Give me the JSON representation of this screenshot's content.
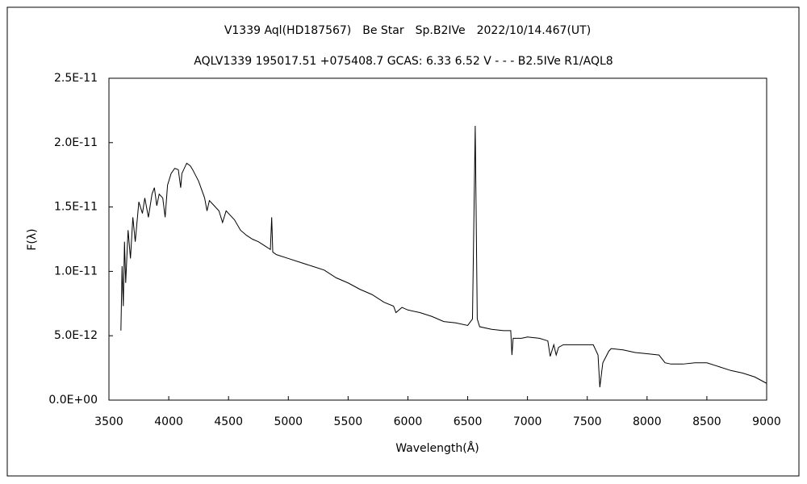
{
  "chart_data": {
    "type": "line",
    "title": "V1339 Aql(HD187567)　Be Star　Sp.B2IVe　2022/10/14.467(UT)",
    "subtitle": "AQLV1339 195017.51 +075408.7 GCAS: 6.33 6.52 V - - - B2.5IVe R1/AQL8",
    "x_label": "Wavelength(Å)",
    "y_label": "F(λ)",
    "xlim": [
      3500,
      9000
    ],
    "xticks": [
      3500,
      4000,
      4500,
      5000,
      5500,
      6000,
      6500,
      7000,
      7500,
      8000,
      8500,
      9000
    ],
    "ylim": [
      0,
      2.5e-11
    ],
    "yticks": [
      {
        "value": 0,
        "label": "0.0E+00"
      },
      {
        "value": 5e-12,
        "label": "5.0E-12"
      },
      {
        "value": 1e-11,
        "label": "1.0E-11"
      },
      {
        "value": 1.5e-11,
        "label": "1.5E-11"
      },
      {
        "value": 2e-11,
        "label": "2.0E-11"
      },
      {
        "value": 2.5e-11,
        "label": "2.5E-11"
      }
    ],
    "grid": false,
    "series": [
      {
        "color": "#000000",
        "x": [
          3600,
          3610,
          3620,
          3630,
          3640,
          3660,
          3680,
          3700,
          3720,
          3750,
          3780,
          3800,
          3830,
          3860,
          3880,
          3900,
          3920,
          3950,
          3970,
          3990,
          4020,
          4050,
          4080,
          4100,
          4110,
          4150,
          4180,
          4200,
          4250,
          4300,
          4320,
          4340,
          4380,
          4420,
          4450,
          4480,
          4500,
          4550,
          4600,
          4650,
          4700,
          4750,
          4800,
          4850,
          4861,
          4870,
          4900,
          5000,
          5100,
          5200,
          5300,
          5400,
          5500,
          5600,
          5700,
          5800,
          5880,
          5900,
          5950,
          6000,
          6100,
          6200,
          6300,
          6400,
          6500,
          6540,
          6563,
          6580,
          6600,
          6700,
          6800,
          6860,
          6870,
          6880,
          6950,
          7000,
          7100,
          7170,
          7190,
          7220,
          7240,
          7260,
          7300,
          7400,
          7550,
          7590,
          7605,
          7630,
          7680,
          7700,
          7800,
          7900,
          8000,
          8100,
          8150,
          8200,
          8300,
          8400,
          8500,
          8600,
          8700,
          8800,
          8900,
          9000
        ],
        "values": [
          5.4e-12,
          1.04e-11,
          7.3e-12,
          1.23e-11,
          9.1e-12,
          1.32e-11,
          1.1e-11,
          1.42e-11,
          1.23e-11,
          1.54e-11,
          1.45e-11,
          1.57e-11,
          1.42e-11,
          1.6e-11,
          1.65e-11,
          1.51e-11,
          1.6e-11,
          1.57e-11,
          1.42e-11,
          1.67e-11,
          1.76e-11,
          1.8e-11,
          1.79e-11,
          1.65e-11,
          1.76e-11,
          1.84e-11,
          1.82e-11,
          1.79e-11,
          1.7e-11,
          1.57e-11,
          1.47e-11,
          1.55e-11,
          1.51e-11,
          1.47e-11,
          1.38e-11,
          1.47e-11,
          1.45e-11,
          1.4e-11,
          1.32e-11,
          1.28e-11,
          1.25e-11,
          1.23e-11,
          1.2e-11,
          1.17e-11,
          1.42e-11,
          1.15e-11,
          1.13e-11,
          1.1e-11,
          1.07e-11,
          1.04e-11,
          1.01e-11,
          9.5e-12,
          9.1e-12,
          8.6e-12,
          8.2e-12,
          7.6e-12,
          7.3e-12,
          6.8e-12,
          7.2e-12,
          7e-12,
          6.8e-12,
          6.5e-12,
          6.1e-12,
          6e-12,
          5.8e-12,
          6.3e-12,
          2.13e-11,
          6.3e-12,
          5.7e-12,
          5.5e-12,
          5.4e-12,
          5.4e-12,
          3.5e-12,
          4.8e-12,
          4.8e-12,
          4.9e-12,
          4.8e-12,
          4.6e-12,
          3.4e-12,
          4.3e-12,
          3.5e-12,
          4.1e-12,
          4.3e-12,
          4.3e-12,
          4.3e-12,
          3.5e-12,
          1e-12,
          2.9e-12,
          3.8e-12,
          4e-12,
          3.9e-12,
          3.7e-12,
          3.6e-12,
          3.5e-12,
          2.9e-12,
          2.8e-12,
          2.8e-12,
          2.9e-12,
          2.9e-12,
          2.6e-12,
          2.3e-12,
          2.1e-12,
          1.8e-12,
          1.3e-12
        ]
      }
    ]
  }
}
